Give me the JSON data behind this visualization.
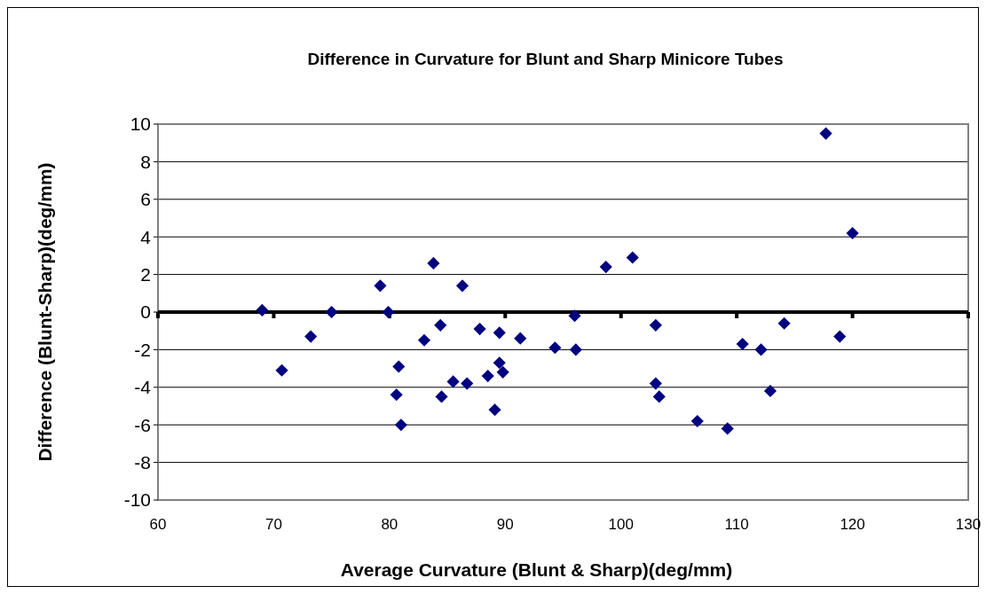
{
  "chart_data": {
    "type": "scatter",
    "title": "Difference in Curvature for Blunt and Sharp Minicore Tubes",
    "xlabel": "Average Curvature (Blunt & Sharp)(deg/mm)",
    "ylabel": "Difference (Blunt-Sharp)(deg/mm)",
    "x": [
      69.0,
      70.7,
      73.2,
      75.0,
      79.2,
      79.9,
      80.8,
      80.6,
      81.0,
      83.0,
      83.8,
      84.4,
      84.5,
      85.5,
      86.3,
      86.7,
      87.8,
      88.5,
      89.1,
      89.5,
      89.5,
      89.8,
      91.3,
      94.3,
      96.0,
      96.1,
      98.7,
      101.0,
      103.0,
      103.0,
      103.3,
      106.6,
      109.2,
      110.5,
      112.1,
      112.9,
      114.1,
      117.7,
      118.9,
      120.0
    ],
    "values": [
      0.1,
      -3.1,
      -1.3,
      0.0,
      1.4,
      0.0,
      -2.9,
      -4.4,
      -6.0,
      -1.5,
      2.6,
      -0.7,
      -4.5,
      -3.7,
      1.4,
      -3.8,
      -0.9,
      -3.4,
      -5.2,
      -1.1,
      -2.7,
      -3.2,
      -1.4,
      -1.9,
      -0.2,
      -2.0,
      2.4,
      2.9,
      -0.7,
      -3.8,
      -4.5,
      -5.8,
      -6.2,
      -1.7,
      -2.0,
      -4.2,
      -0.6,
      9.5,
      -1.3,
      4.2
    ],
    "color": "#000080",
    "marker": "diamond",
    "xlim": [
      60,
      130
    ],
    "xticks": [
      60,
      70,
      80,
      90,
      100,
      110,
      120,
      130
    ],
    "ylim": [
      -10,
      10
    ],
    "yticks": [
      -10,
      -8,
      -6,
      -4,
      -2,
      0,
      2,
      4,
      6,
      8,
      10
    ],
    "grid": "y"
  }
}
